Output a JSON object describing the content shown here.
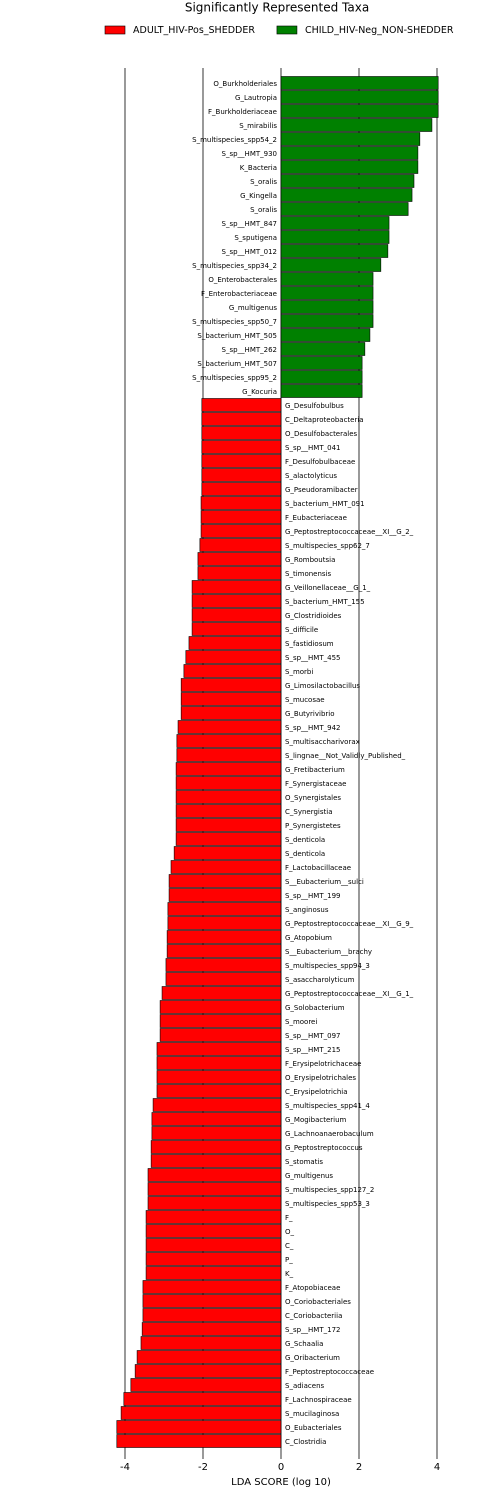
{
  "chart_data": {
    "type": "bar",
    "orientation": "horizontal",
    "title": "Significantly Represented Taxa",
    "xlabel": "LDA SCORE (log 10)",
    "xlim": [
      -4.5,
      4.4
    ],
    "xticks": [
      -4,
      -2,
      0,
      2,
      4
    ],
    "grid": true,
    "legend": "top",
    "categories": [
      "O_Burkholderiales",
      "G_Lautropia",
      "F_Burkholderiaceae",
      "S_mirabilis",
      "S_multispecies_spp54_2",
      "S_sp__HMT_930",
      "K_Bacteria",
      "S_oralis",
      "G_Kingella",
      "S_oralis",
      "S_sp__HMT_847",
      "S_sputigena",
      "S_sp__HMT_012",
      "S_multispecies_spp34_2",
      "O_Enterobacterales",
      "F_Enterobacteriaceae",
      "G_multigenus",
      "S_multispecies_spp50_7",
      "S_bacterium_HMT_505",
      "S_sp__HMT_262",
      "S_bacterium_HMT_507",
      "S_multispecies_spp95_2",
      "G_Kocuria",
      "G_Desulfobulbus",
      "C_Deltaproteobacteria",
      "O_Desulfobacterales",
      "S_sp__HMT_041",
      "F_Desulfobulbaceae",
      "S_alactolyticus",
      "G_Pseudoramibacter",
      "S_bacterium_HMT_091",
      "F_Eubacteriaceae",
      "G_Peptostreptococcaceae__XI__G_2_",
      "S_multispecies_spp62_7",
      "G_Romboutsia",
      "S_timonensis",
      "G_Veillonellaceae__G_1_",
      "S_bacterium_HMT_155",
      "G_Clostridioides",
      "S_difficile",
      "S_fastidiosum",
      "S_sp__HMT_455",
      "S_morbi",
      "G_Limosilactobacillus",
      "S_mucosae",
      "G_Butyrivibrio",
      "S_sp__HMT_942",
      "S_multisaccharivorax",
      "S_lingnae__Not_Validly_Published_",
      "G_Fretibacterium",
      "F_Synergistaceae",
      "O_Synergistales",
      "C_Synergistia",
      "P_Synergistetes",
      "S_denticola",
      "S_denticola",
      "F_Lactobacillaceae",
      "S__Eubacterium__sulci",
      "S_sp__HMT_199",
      "S_anginosus",
      "G_Peptostreptococcaceae__XI__G_9_",
      "G_Atopobium",
      "S__Eubacterium__brachy",
      "S_multispecies_spp94_3",
      "S_asaccharolyticum",
      "G_Peptostreptococcaceae__XI__G_1_",
      "G_Solobacterium",
      "S_moorei",
      "S_sp__HMT_097",
      "S_sp__HMT_215",
      "F_Erysipelotrichaceae",
      "O_Erysipelotrichales",
      "C_Erysipelotrichia",
      "S_multispecies_spp41_4",
      "G_Mogibacterium",
      "G_Lachnoanaerobaculum",
      "G_Peptostreptococcus",
      "S_stomatis",
      "G_multigenus",
      "S_multispecies_spp127_2",
      "S_multispecies_spp53_3",
      "F_",
      "O_",
      "C_",
      "P_",
      "K_",
      "F_Atopobiaceae",
      "O_Coriobacteriales",
      "C_Coriobacteriia",
      "S_sp__HMT_172",
      "G_Schaalia",
      "G_Oribacterium",
      "F_Peptostreptococcaceae",
      "S_adiacens",
      "F_Lachnospiraceae",
      "S_mucilaginosa",
      "O_Eubacteriales",
      "C_Clostridia"
    ],
    "series": [
      {
        "name": "ADULT_HIV-Pos_SHEDDER",
        "color": "#ff0000",
        "values": [
          null,
          null,
          null,
          null,
          null,
          null,
          null,
          null,
          null,
          null,
          null,
          null,
          null,
          null,
          null,
          null,
          null,
          null,
          null,
          null,
          null,
          null,
          null,
          -2.03,
          -2.03,
          -2.03,
          -2.03,
          -2.03,
          -2.03,
          -2.03,
          -2.05,
          -2.05,
          -2.05,
          -2.08,
          -2.13,
          -2.13,
          -2.28,
          -2.28,
          -2.28,
          -2.28,
          -2.36,
          -2.44,
          -2.49,
          -2.56,
          -2.56,
          -2.56,
          -2.64,
          -2.67,
          -2.67,
          -2.69,
          -2.69,
          -2.69,
          -2.69,
          -2.69,
          -2.69,
          -2.74,
          -2.82,
          -2.87,
          -2.87,
          -2.9,
          -2.9,
          -2.92,
          -2.92,
          -2.95,
          -2.95,
          -3.05,
          -3.1,
          -3.1,
          -3.1,
          -3.18,
          -3.18,
          -3.18,
          -3.18,
          -3.28,
          -3.31,
          -3.31,
          -3.33,
          -3.33,
          -3.41,
          -3.41,
          -3.41,
          -3.46,
          -3.46,
          -3.46,
          -3.46,
          -3.46,
          -3.54,
          -3.54,
          -3.54,
          -3.56,
          -3.59,
          -3.69,
          -3.74,
          -3.85,
          -4.03,
          -4.1,
          -4.21,
          -4.21
        ]
      },
      {
        "name": "CHILD_HIV-Neg_NON-SHEDDER",
        "color": "#008000",
        "values": [
          4.03,
          4.03,
          4.03,
          3.87,
          3.56,
          3.51,
          3.51,
          3.41,
          3.36,
          3.26,
          2.77,
          2.77,
          2.74,
          2.56,
          2.36,
          2.36,
          2.36,
          2.36,
          2.28,
          2.15,
          2.08,
          2.08,
          2.08,
          null,
          null,
          null,
          null,
          null,
          null,
          null,
          null,
          null,
          null,
          null,
          null,
          null,
          null,
          null,
          null,
          null,
          null,
          null,
          null,
          null,
          null,
          null,
          null,
          null,
          null,
          null,
          null,
          null,
          null,
          null,
          null,
          null,
          null,
          null,
          null,
          null,
          null,
          null,
          null,
          null,
          null,
          null,
          null,
          null,
          null,
          null,
          null,
          null,
          null,
          null,
          null,
          null,
          null,
          null,
          null,
          null,
          null,
          null,
          null,
          null,
          null,
          null,
          null,
          null,
          null,
          null,
          null,
          null,
          null,
          null,
          null,
          null,
          null,
          null
        ]
      }
    ]
  }
}
